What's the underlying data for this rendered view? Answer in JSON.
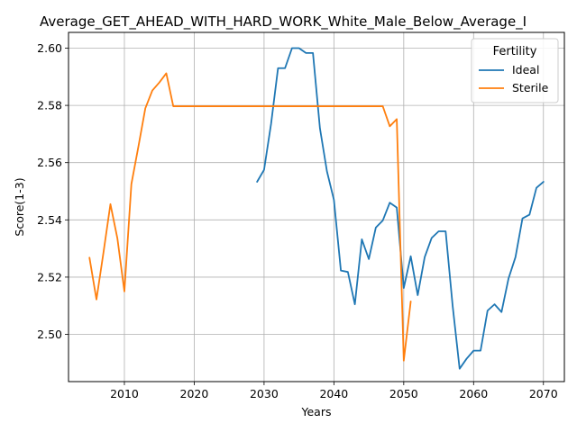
{
  "chart_data": {
    "type": "line",
    "title": "Average_GET_AHEAD_WITH_HARD_WORK_White_Male_Below_Average_I",
    "xlabel": "Years",
    "ylabel": "Score(1-3)",
    "xlim": [
      2002,
      2073
    ],
    "ylim": [
      2.4835,
      2.6055
    ],
    "xticks": [
      2010,
      2020,
      2030,
      2040,
      2050,
      2060,
      2070
    ],
    "yticks": [
      2.5,
      2.52,
      2.54,
      2.56,
      2.58,
      2.6
    ],
    "grid": true,
    "legend": {
      "title": "Fertility",
      "position": "top-right"
    },
    "series": [
      {
        "name": "Ideal",
        "color": "#1f77b4",
        "x": [
          2029,
          2030,
          2031,
          2032,
          2033,
          2034,
          2035,
          2036,
          2037,
          2038,
          2039,
          2040,
          2041,
          2042,
          2043,
          2044,
          2045,
          2046,
          2047,
          2048,
          2049,
          2050,
          2051,
          2052,
          2053,
          2054,
          2055,
          2056,
          2057,
          2058,
          2059,
          2060,
          2061,
          2062,
          2063,
          2064,
          2065,
          2066,
          2067,
          2068,
          2069,
          2070
        ],
        "y": [
          2.5533,
          2.5575,
          2.5735,
          2.593,
          2.593,
          2.6,
          2.6,
          2.5983,
          2.5983,
          2.572,
          2.557,
          2.547,
          2.5223,
          2.5218,
          2.5105,
          2.5332,
          2.5263,
          2.5373,
          2.5398,
          2.546,
          2.5443,
          2.5162,
          2.5273,
          2.5137,
          2.527,
          2.5337,
          2.536,
          2.536,
          2.51,
          2.488,
          2.4915,
          2.4943,
          2.4943,
          2.5083,
          2.5105,
          2.5078,
          2.5195,
          2.527,
          2.5405,
          2.5418,
          2.5512,
          2.5533
        ]
      },
      {
        "name": "Sterile",
        "color": "#ff7f0e",
        "x": [
          2005,
          2006,
          2007,
          2008,
          2009,
          2010,
          2011,
          2012,
          2013,
          2014,
          2015,
          2016,
          2017,
          2018,
          2020,
          2025,
          2030,
          2035,
          2040,
          2045,
          2047,
          2048,
          2049,
          2050,
          2051
        ],
        "y": [
          2.5268,
          2.5122,
          2.5285,
          2.5455,
          2.5335,
          2.515,
          2.5525,
          2.5655,
          2.579,
          2.5852,
          2.588,
          2.5912,
          2.5797,
          2.5797,
          2.5797,
          2.5797,
          2.5797,
          2.5797,
          2.5797,
          2.5797,
          2.5797,
          2.5727,
          2.5752,
          2.4908,
          2.5115
        ]
      }
    ]
  }
}
